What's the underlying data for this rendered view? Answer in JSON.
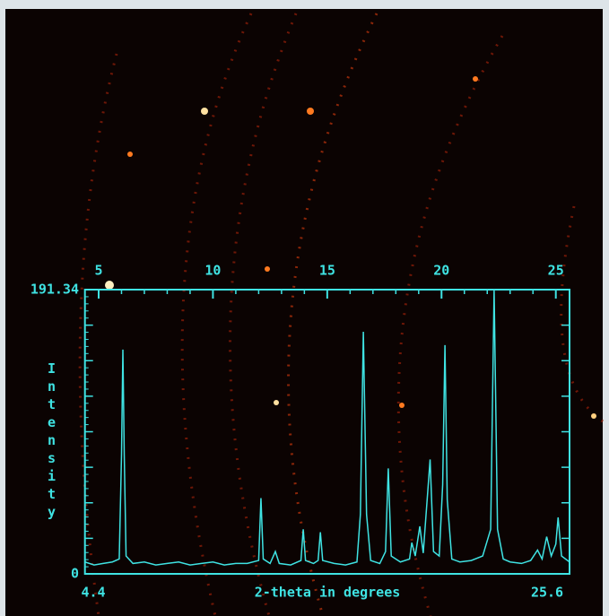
{
  "chart_data": {
    "type": "line",
    "xlabel": "2-theta in degrees",
    "ylabel": "Intensity",
    "x": [
      4.4,
      4.8,
      5.2,
      5.6,
      5.9,
      6.0,
      6.06,
      6.12,
      6.2,
      6.5,
      7.0,
      7.5,
      8.0,
      8.5,
      9.0,
      9.5,
      10.0,
      10.5,
      11.0,
      11.5,
      12.0,
      12.1,
      12.2,
      12.5,
      12.73,
      12.9,
      13.4,
      13.85,
      13.95,
      14.05,
      14.4,
      14.6,
      14.7,
      14.8,
      15.3,
      15.8,
      16.3,
      16.45,
      16.58,
      16.72,
      16.9,
      17.3,
      17.55,
      17.67,
      17.8,
      18.2,
      18.6,
      18.7,
      18.85,
      19.05,
      19.2,
      19.5,
      19.65,
      19.9,
      20.05,
      20.15,
      20.25,
      20.45,
      20.8,
      21.3,
      21.8,
      22.15,
      22.3,
      22.45,
      22.7,
      23.0,
      23.5,
      23.9,
      24.2,
      24.4,
      24.6,
      24.8,
      25.0,
      25.1,
      25.25,
      25.6
    ],
    "series": [
      {
        "color": "#3fe3e3",
        "values": [
          8,
          6,
          7,
          8,
          10,
          80,
          151,
          80,
          12,
          7,
          8,
          6,
          7,
          8,
          6,
          7,
          8,
          6,
          7,
          7,
          9,
          51,
          10,
          7,
          15,
          7,
          6,
          9,
          30,
          9,
          7,
          9,
          28,
          9,
          7,
          6,
          8,
          40,
          163,
          40,
          9,
          7,
          15,
          71,
          12,
          8,
          10,
          21,
          12,
          32,
          14,
          77,
          15,
          12,
          60,
          154,
          50,
          10,
          8,
          9,
          12,
          30,
          191.34,
          30,
          10,
          8,
          7,
          9,
          16,
          10,
          25,
          12,
          20,
          38,
          12,
          8
        ]
      }
    ],
    "xlim": [
      4.4,
      25.6
    ],
    "xticks": [
      5,
      10,
      15,
      20,
      25
    ],
    "ylim": [
      0,
      191.34
    ],
    "yticks": [
      0,
      191.34
    ]
  }
}
